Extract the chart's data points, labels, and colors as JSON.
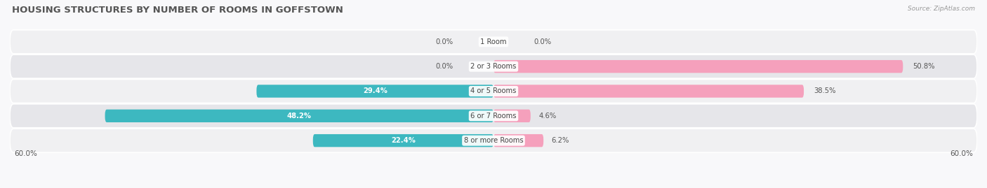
{
  "title": "HOUSING STRUCTURES BY NUMBER OF ROOMS IN GOFFSTOWN",
  "source": "Source: ZipAtlas.com",
  "categories": [
    "1 Room",
    "2 or 3 Rooms",
    "4 or 5 Rooms",
    "6 or 7 Rooms",
    "8 or more Rooms"
  ],
  "owner_values": [
    0.0,
    0.0,
    29.4,
    48.2,
    22.4
  ],
  "renter_values": [
    0.0,
    50.8,
    38.5,
    4.6,
    6.2
  ],
  "owner_color": "#3DB8C0",
  "renter_color": "#F5A0BC",
  "row_bg_odd": "#F0F0F2",
  "row_bg_even": "#E6E6EA",
  "xlim": 60.0,
  "title_fontsize": 9.5,
  "label_fontsize": 7.5,
  "bar_height": 0.52,
  "cat_label_fontsize": 7.2,
  "value_label_fontsize": 7.2
}
